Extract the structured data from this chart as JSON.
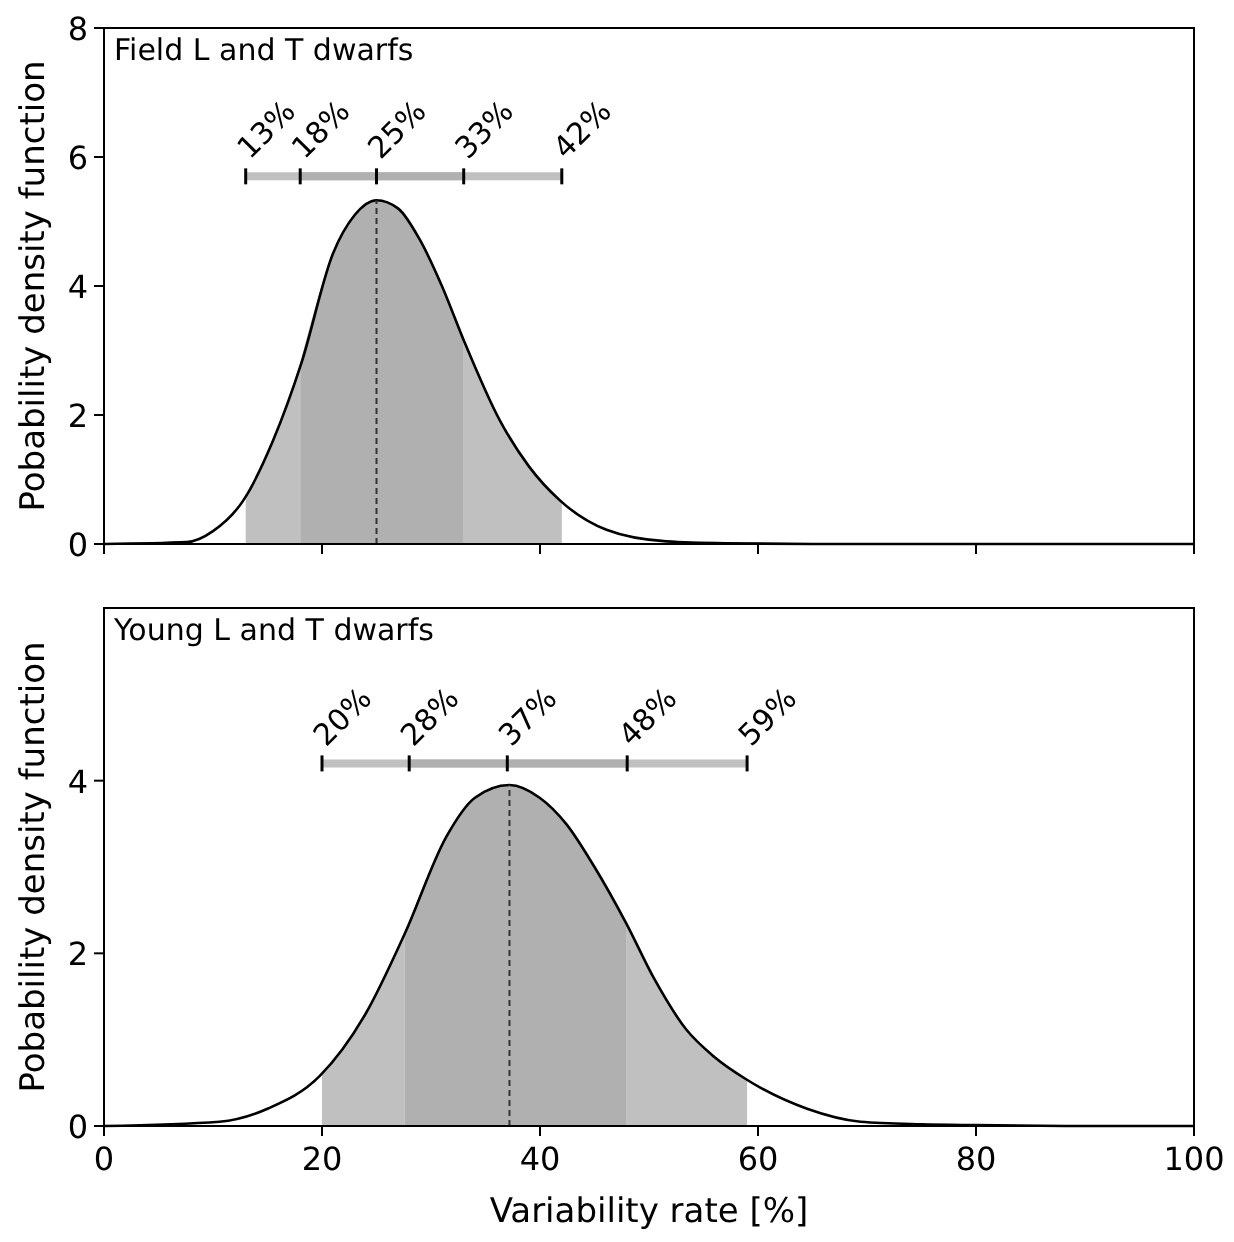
{
  "chart_data": [
    {
      "type": "line",
      "title": "Field L and T dwarfs",
      "ylabel": "Pobability density function",
      "xlim": [
        0,
        100
      ],
      "ylim": [
        0,
        8
      ],
      "xticks": [
        0,
        20,
        40,
        60,
        80,
        100
      ],
      "yticks": [
        0,
        2,
        4,
        6,
        8
      ],
      "tick_labels": "y",
      "grid": false,
      "series": [
        {
          "type": "area",
          "color": "#c0c0c0",
          "x": [
            13,
            15.5,
            18
          ],
          "values": [
            0.68,
            1.6,
            2.8
          ]
        },
        {
          "type": "area",
          "color": "#c0c0c0",
          "x": [
            33,
            36.3,
            39,
            42
          ],
          "values": [
            3.16,
            1.92,
            1.2,
            0.68
          ]
        },
        {
          "type": "area",
          "color": "#b0b0b0",
          "x": [
            18,
            21,
            23,
            25,
            27,
            29,
            31,
            33
          ],
          "values": [
            2.8,
            4.5,
            5.1,
            5.33,
            5.2,
            4.71,
            4.0,
            3.16
          ]
        },
        {
          "color": "#000000",
          "x": [
            0,
            7.6,
            10,
            12.8,
            15.5,
            18.1,
            21,
            23,
            25,
            27,
            29,
            31,
            33,
            36.3,
            39,
            41.8,
            46.1,
            51.6,
            57,
            65,
            80,
            100
          ],
          "values": [
            0,
            0.03,
            0.2,
            0.68,
            1.6,
            2.8,
            4.5,
            5.1,
            5.33,
            5.2,
            4.71,
            4.0,
            3.16,
            1.92,
            1.2,
            0.68,
            0.22,
            0.04,
            0.01,
            0,
            0,
            0
          ]
        },
        {
          "type": "line",
          "color": "#333333",
          "line_style": "dashed",
          "x": [
            25,
            25
          ],
          "values": [
            0,
            5.33
          ]
        },
        {
          "type": "line",
          "color": "#c0c0c0",
          "x": [
            13,
            42
          ],
          "values": [
            5.7,
            5.7
          ]
        },
        {
          "type": "line",
          "color": "#b0b0b0",
          "x": [
            18,
            33
          ],
          "values": [
            5.7,
            5.7
          ]
        }
      ],
      "annotations": [
        {
          "text": "13%",
          "x": 13,
          "y": 5.7
        },
        {
          "text": "18%",
          "x": 18,
          "y": 5.7
        },
        {
          "text": "25%",
          "x": 25,
          "y": 5.7
        },
        {
          "text": "33%",
          "x": 33,
          "y": 5.7
        },
        {
          "text": "42%",
          "x": 42,
          "y": 5.7
        }
      ]
    },
    {
      "type": "line",
      "title": "Young L and T dwarfs",
      "ylabel": "Pobability density function",
      "xlabel": "Variability rate [%]",
      "xlim": [
        0,
        100
      ],
      "ylim": [
        0,
        6
      ],
      "xticks": [
        0,
        20,
        40,
        60,
        80,
        100
      ],
      "yticks": [
        0,
        2,
        4
      ],
      "grid": false,
      "series": [
        {
          "type": "area",
          "color": "#c0c0c0",
          "x": [
            20,
            24,
            27.6
          ],
          "values": [
            0.6,
            1.3,
            2.23
          ]
        },
        {
          "type": "area",
          "color": "#c0c0c0",
          "x": [
            47.9,
            50.5,
            53.4,
            56,
            59
          ],
          "values": [
            2.35,
            1.7,
            1.12,
            0.8,
            0.53
          ]
        },
        {
          "type": "area",
          "color": "#b0b0b0",
          "x": [
            27.6,
            31.4,
            34,
            37.2,
            40,
            42.4,
            45,
            47.9
          ],
          "values": [
            2.23,
            3.35,
            3.8,
            3.95,
            3.8,
            3.5,
            3.0,
            2.35
          ]
        },
        {
          "color": "#000000",
          "x": [
            0,
            10.6,
            15,
            19.8,
            24,
            27.6,
            31.4,
            34,
            37.2,
            40,
            42.4,
            45,
            47.9,
            50.5,
            53.4,
            56,
            58.8,
            64.5,
            69.4,
            75,
            80,
            90,
            100
          ],
          "values": [
            0,
            0.05,
            0.2,
            0.58,
            1.3,
            2.23,
            3.35,
            3.8,
            3.95,
            3.8,
            3.5,
            3.0,
            2.35,
            1.7,
            1.12,
            0.8,
            0.55,
            0.2,
            0.05,
            0.02,
            0.01,
            0,
            0
          ]
        },
        {
          "type": "line",
          "color": "#333333",
          "line_style": "dashed",
          "x": [
            37.2,
            37.2
          ],
          "values": [
            0,
            3.95
          ]
        },
        {
          "type": "line",
          "color": "#c0c0c0",
          "x": [
            20,
            59
          ],
          "values": [
            4.2,
            4.2
          ]
        },
        {
          "type": "line",
          "color": "#b0b0b0",
          "x": [
            28,
            48
          ],
          "values": [
            4.2,
            4.2
          ]
        }
      ],
      "annotations": [
        {
          "text": "20%",
          "x": 20,
          "y": 4.2
        },
        {
          "text": "28%",
          "x": 28,
          "y": 4.2
        },
        {
          "text": "37%",
          "x": 37,
          "y": 4.2
        },
        {
          "text": "48%",
          "x": 48,
          "y": 4.2
        },
        {
          "text": "59%",
          "x": 59,
          "y": 4.2
        }
      ]
    }
  ]
}
